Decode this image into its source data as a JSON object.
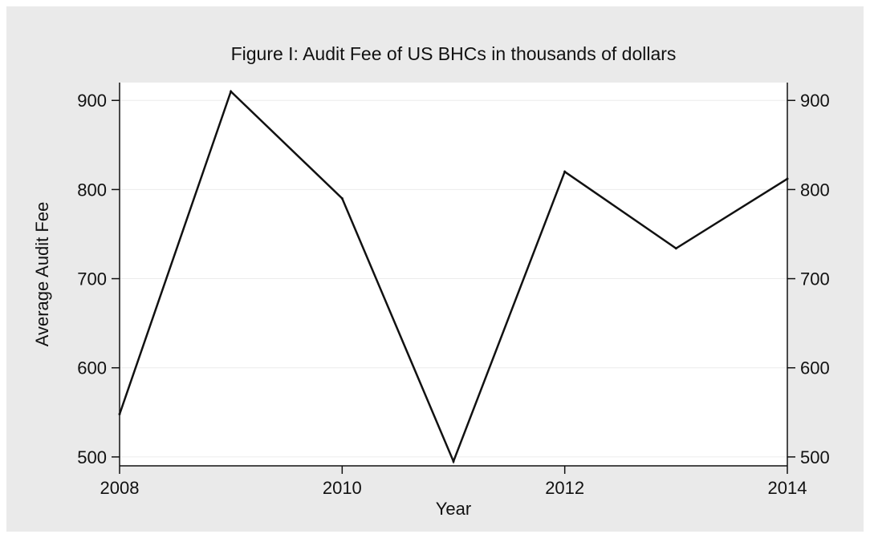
{
  "chart_data": {
    "type": "line",
    "title": "Figure I: Audit Fee of US BHCs in thousands of dollars",
    "xlabel": "Year",
    "ylabel": "Average Audit Fee",
    "x": [
      2008,
      2009,
      2010,
      2011,
      2012,
      2013,
      2014
    ],
    "series": [
      {
        "values": [
          548,
          910,
          790,
          495,
          820,
          734,
          812
        ]
      }
    ],
    "xlim": [
      2008,
      2014
    ],
    "ylim": [
      490,
      920
    ],
    "xticks": [
      "2008",
      "2010",
      "2012",
      "2014"
    ],
    "yticks": [
      "500",
      "600",
      "700",
      "800",
      "900"
    ],
    "right_axis_mirrored": true,
    "grid": true,
    "legend": "none",
    "colors": {
      "background": "#eaeaea",
      "plot_area": "#ffffff",
      "line": "#111111",
      "grid": "#ececec"
    }
  }
}
